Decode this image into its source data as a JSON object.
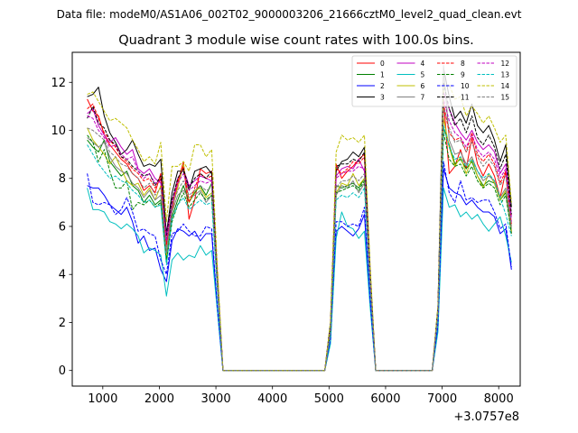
{
  "suptitle": "Data file: modeM0/AS1A06_002T02_9000003206_21666cztM0_level2_quad_clean.evt",
  "chart_data": {
    "type": "line",
    "title": "Quadrant 3 module wise count rates with 100.0s bins.",
    "xlabel": "",
    "ylabel": "",
    "x_offset_label": "+3.0757e8",
    "xlim": [
      460,
      8380
    ],
    "ylim": [
      -0.65,
      13.25
    ],
    "xticks": [
      1000,
      2000,
      3000,
      4000,
      5000,
      6000,
      7000,
      8000
    ],
    "xtick_labels": [
      "1000",
      "2000",
      "3000",
      "4000",
      "5000",
      "6000",
      "7000",
      "8000"
    ],
    "yticks": [
      0,
      2,
      4,
      6,
      8,
      10,
      12
    ],
    "ytick_labels": [
      "0",
      "2",
      "4",
      "6",
      "8",
      "10",
      "12"
    ],
    "legend_position": "upper-right",
    "legend_columns": 4,
    "x": [
      725,
      825,
      925,
      1025,
      1125,
      1225,
      1325,
      1425,
      1525,
      1625,
      1725,
      1825,
      1925,
      2025,
      2125,
      2225,
      2325,
      2425,
      2525,
      2625,
      2725,
      2825,
      2925,
      3025,
      3125,
      3225,
      4925,
      5025,
      5125,
      5225,
      5325,
      5425,
      5525,
      5625,
      5725,
      5825,
      6825,
      6925,
      7025,
      7125,
      7225,
      7325,
      7425,
      7525,
      7625,
      7725,
      7825,
      7925,
      8025,
      8125,
      8225
    ],
    "series": [
      {
        "name": "0",
        "color": "#ff0000",
        "style": "solid",
        "values": [
          11.3,
          10.8,
          10.6,
          9.8,
          9.4,
          9.1,
          8.8,
          8.6,
          8.2,
          8.0,
          7.5,
          7.7,
          7.4,
          8.2,
          5.3,
          6.6,
          7.8,
          8.7,
          6.3,
          7.1,
          8.4,
          8.2,
          8.3,
          4.0,
          0.0,
          0.0,
          0.0,
          1.8,
          8.6,
          8.0,
          8.3,
          8.5,
          8.8,
          9.0,
          4.0,
          0.0,
          0.0,
          2.5,
          11.3,
          8.2,
          8.5,
          9.2,
          8.4,
          9.7,
          8.6,
          8.1,
          8.6,
          8.1,
          7.2,
          8.3,
          5.7
        ]
      },
      {
        "name": "1",
        "color": "#008000",
        "style": "solid",
        "values": [
          9.6,
          9.3,
          9.1,
          9.6,
          8.7,
          8.4,
          8.1,
          8.3,
          7.7,
          7.5,
          7.0,
          7.3,
          6.9,
          7.1,
          4.6,
          6.4,
          7.1,
          7.7,
          7.0,
          7.4,
          7.7,
          7.3,
          7.8,
          3.7,
          0.0,
          0.0,
          0.0,
          1.6,
          7.7,
          7.6,
          7.7,
          7.8,
          7.6,
          8.0,
          3.8,
          0.0,
          0.0,
          2.4,
          10.1,
          9.4,
          8.6,
          8.8,
          8.4,
          8.7,
          8.1,
          7.7,
          7.9,
          7.8,
          7.1,
          7.4,
          5.8
        ]
      },
      {
        "name": "2",
        "color": "#0000ff",
        "style": "solid",
        "values": [
          7.7,
          7.6,
          7.6,
          7.3,
          6.9,
          6.7,
          6.5,
          6.8,
          6.2,
          5.3,
          5.6,
          5.0,
          5.1,
          4.2,
          3.7,
          5.4,
          5.9,
          5.8,
          5.6,
          5.8,
          5.4,
          5.7,
          5.7,
          2.6,
          0.0,
          0.0,
          0.0,
          1.2,
          5.8,
          6.0,
          5.8,
          5.6,
          5.9,
          6.5,
          2.9,
          0.0,
          0.0,
          1.8,
          8.4,
          7.6,
          7.4,
          7.3,
          6.9,
          7.1,
          6.8,
          6.6,
          6.6,
          6.4,
          5.7,
          5.9,
          4.2
        ]
      },
      {
        "name": "3",
        "color": "#000000",
        "style": "solid",
        "values": [
          11.4,
          11.5,
          11.8,
          10.6,
          9.9,
          9.5,
          9.0,
          9.2,
          9.6,
          9.0,
          8.5,
          8.6,
          8.5,
          8.8,
          5.7,
          7.4,
          8.3,
          8.3,
          7.5,
          8.3,
          8.4,
          8.5,
          8.2,
          4.1,
          0.0,
          0.0,
          0.0,
          2.0,
          8.3,
          8.7,
          8.8,
          9.1,
          8.9,
          9.3,
          4.3,
          0.0,
          0.0,
          2.6,
          12.6,
          11.4,
          10.5,
          10.8,
          10.3,
          11.1,
          10.2,
          9.9,
          10.2,
          9.6,
          8.7,
          9.4,
          6.8
        ]
      },
      {
        "name": "4",
        "color": "#c000c0",
        "style": "solid",
        "values": [
          10.7,
          10.9,
          10.2,
          9.8,
          9.5,
          9.7,
          9.3,
          9.0,
          9.2,
          8.4,
          8.2,
          8.4,
          8.0,
          7.8,
          5.6,
          7.0,
          8.0,
          8.4,
          7.7,
          7.9,
          8.1,
          8.0,
          7.9,
          3.9,
          0.0,
          0.0,
          0.0,
          1.7,
          8.1,
          8.4,
          8.5,
          8.4,
          8.8,
          8.3,
          4.0,
          0.0,
          0.0,
          2.5,
          11.6,
          10.9,
          10.3,
          9.9,
          9.6,
          10.0,
          9.5,
          9.2,
          9.4,
          9.1,
          8.2,
          8.6,
          6.4
        ]
      },
      {
        "name": "5",
        "color": "#00bfbf",
        "style": "solid",
        "values": [
          7.6,
          6.7,
          6.7,
          6.6,
          6.2,
          6.1,
          5.9,
          6.1,
          5.9,
          5.6,
          4.9,
          5.1,
          5.0,
          4.8,
          3.1,
          4.6,
          4.9,
          4.6,
          4.8,
          4.7,
          5.2,
          4.8,
          5.0,
          2.5,
          0.0,
          0.0,
          0.0,
          1.1,
          5.5,
          6.6,
          6.0,
          5.9,
          5.5,
          5.8,
          2.7,
          0.0,
          0.0,
          1.6,
          7.6,
          6.8,
          6.9,
          6.4,
          6.6,
          6.3,
          6.5,
          6.1,
          5.8,
          6.1,
          6.4,
          5.6,
          4.5
        ]
      },
      {
        "name": "6",
        "color": "#bfbf00",
        "style": "solid",
        "values": [
          10.1,
          9.6,
          9.3,
          9.0,
          8.6,
          8.9,
          8.4,
          7.9,
          7.7,
          7.8,
          7.3,
          7.6,
          7.1,
          7.7,
          4.8,
          6.8,
          7.6,
          8.6,
          7.0,
          7.5,
          7.6,
          7.2,
          7.4,
          3.6,
          0.0,
          0.0,
          0.0,
          1.6,
          7.4,
          7.8,
          7.7,
          8.2,
          7.7,
          8.0,
          3.8,
          0.0,
          0.0,
          2.3,
          10.5,
          9.3,
          8.5,
          8.9,
          8.2,
          8.8,
          8.1,
          7.6,
          8.2,
          7.8,
          7.1,
          7.5,
          5.8
        ]
      },
      {
        "name": "7",
        "color": "#808080",
        "style": "solid",
        "values": [
          9.7,
          9.5,
          9.3,
          9.5,
          8.9,
          8.5,
          8.3,
          8.2,
          7.8,
          7.6,
          7.2,
          7.5,
          7.1,
          7.3,
          4.9,
          6.6,
          7.3,
          7.5,
          7.2,
          7.3,
          7.5,
          7.0,
          7.3,
          3.5,
          0.0,
          0.0,
          0.0,
          1.5,
          7.3,
          7.7,
          7.6,
          7.9,
          7.4,
          7.8,
          3.7,
          0.0,
          0.0,
          2.4,
          12.7,
          9.6,
          9.0,
          9.1,
          8.6,
          8.9,
          8.3,
          7.9,
          8.1,
          7.9,
          7.2,
          7.6,
          5.9
        ]
      },
      {
        "name": "8",
        "color": "#ff0000",
        "style": "dashed",
        "values": [
          10.9,
          11.1,
          10.5,
          9.9,
          9.6,
          9.3,
          8.9,
          8.7,
          8.4,
          8.2,
          7.9,
          8.0,
          7.6,
          8.0,
          5.2,
          6.9,
          7.9,
          8.5,
          7.0,
          7.6,
          8.2,
          8.0,
          8.1,
          3.9,
          0.0,
          0.0,
          0.0,
          1.8,
          8.4,
          8.2,
          8.4,
          8.7,
          8.6,
          8.9,
          4.0,
          0.0,
          0.0,
          2.5,
          11.1,
          9.9,
          9.6,
          9.7,
          9.1,
          9.9,
          9.0,
          8.7,
          9.0,
          8.6,
          7.8,
          8.3,
          6.1
        ]
      },
      {
        "name": "9",
        "color": "#008000",
        "style": "dashed",
        "values": [
          9.8,
          9.5,
          8.7,
          9.2,
          8.3,
          7.6,
          7.6,
          7.9,
          6.7,
          7.0,
          6.9,
          7.1,
          6.8,
          7.0,
          4.5,
          6.2,
          6.9,
          7.4,
          6.8,
          7.1,
          7.4,
          7.1,
          7.3,
          3.6,
          0.0,
          0.0,
          0.0,
          1.6,
          7.4,
          7.5,
          7.6,
          7.7,
          7.5,
          7.9,
          3.7,
          0.0,
          0.0,
          2.3,
          9.9,
          8.8,
          8.5,
          8.6,
          8.1,
          8.5,
          7.9,
          7.6,
          7.8,
          7.6,
          6.9,
          7.3,
          5.7
        ]
      },
      {
        "name": "10",
        "color": "#0000ff",
        "style": "dashed",
        "values": [
          8.2,
          7.0,
          6.9,
          7.0,
          6.9,
          6.5,
          6.7,
          7.2,
          6.6,
          5.8,
          5.9,
          5.7,
          5.6,
          4.6,
          4.0,
          5.7,
          5.8,
          6.1,
          5.8,
          5.6,
          5.6,
          6.0,
          5.9,
          2.7,
          0.0,
          0.0,
          0.0,
          1.3,
          6.2,
          6.2,
          6.0,
          6.1,
          6.0,
          6.8,
          3.0,
          0.0,
          0.0,
          1.9,
          8.7,
          7.4,
          7.0,
          7.9,
          7.1,
          7.2,
          7.0,
          7.1,
          7.1,
          6.6,
          5.9,
          6.1,
          4.3
        ]
      },
      {
        "name": "11",
        "color": "#000000",
        "style": "dashed",
        "values": [
          10.5,
          11.0,
          10.3,
          10.1,
          9.6,
          9.4,
          8.9,
          8.8,
          8.5,
          8.3,
          8.1,
          8.2,
          7.7,
          8.1,
          5.5,
          7.1,
          8.0,
          8.4,
          7.6,
          8.0,
          8.2,
          8.0,
          8.3,
          4.0,
          0.0,
          0.0,
          0.0,
          1.8,
          8.5,
          8.6,
          8.6,
          8.8,
          8.7,
          9.1,
          4.1,
          0.0,
          0.0,
          2.6,
          12.0,
          10.9,
          10.2,
          10.5,
          9.9,
          10.6,
          9.7,
          9.4,
          9.8,
          9.3,
          8.4,
          9.0,
          6.5
        ]
      },
      {
        "name": "12",
        "color": "#c000c0",
        "style": "dashed",
        "values": [
          10.6,
          10.5,
          10.0,
          9.7,
          9.3,
          9.4,
          9.0,
          8.8,
          8.9,
          8.3,
          8.0,
          8.2,
          7.8,
          7.9,
          5.4,
          6.9,
          7.8,
          8.2,
          7.5,
          7.7,
          7.9,
          7.8,
          7.9,
          3.8,
          0.0,
          0.0,
          0.0,
          1.7,
          8.0,
          8.2,
          8.3,
          8.3,
          8.5,
          8.4,
          3.9,
          0.0,
          0.0,
          2.4,
          11.3,
          10.4,
          9.9,
          9.7,
          9.3,
          9.8,
          9.2,
          8.9,
          9.1,
          8.8,
          8.0,
          8.4,
          6.2
        ]
      },
      {
        "name": "13",
        "color": "#00bfbf",
        "style": "dashed",
        "values": [
          9.4,
          9.0,
          8.6,
          8.3,
          8.0,
          8.1,
          7.9,
          7.8,
          7.5,
          7.3,
          7.0,
          7.1,
          6.8,
          6.9,
          4.4,
          6.3,
          6.9,
          7.2,
          6.7,
          6.9,
          7.1,
          6.9,
          7.0,
          3.4,
          0.0,
          0.0,
          0.0,
          1.5,
          7.1,
          7.3,
          7.2,
          7.4,
          7.2,
          7.6,
          3.6,
          0.0,
          0.0,
          2.2,
          10.2,
          9.3,
          8.8,
          8.9,
          8.5,
          8.8,
          8.3,
          8.0,
          8.2,
          7.9,
          7.2,
          6.5,
          5.6
        ]
      },
      {
        "name": "14",
        "color": "#bfbf00",
        "style": "dashed",
        "values": [
          11.5,
          11.6,
          11.2,
          10.8,
          10.4,
          10.5,
          10.3,
          10.1,
          9.6,
          9.2,
          8.7,
          8.9,
          8.6,
          9.5,
          6.2,
          8.5,
          8.5,
          8.7,
          8.3,
          9.4,
          9.4,
          8.9,
          9.2,
          4.4,
          0.0,
          0.0,
          0.0,
          2.0,
          9.1,
          9.8,
          9.6,
          9.7,
          9.5,
          9.8,
          4.5,
          0.0,
          0.0,
          2.7,
          11.8,
          11.9,
          11.3,
          11.4,
          10.6,
          11.0,
          10.7,
          10.3,
          10.6,
          10.1,
          9.5,
          9.8,
          7.0
        ]
      },
      {
        "name": "15",
        "color": "#808080",
        "style": "dashed",
        "values": [
          10.1,
          10.0,
          9.8,
          9.6,
          9.1,
          8.9,
          8.6,
          8.5,
          8.2,
          8.0,
          7.6,
          7.8,
          7.3,
          7.6,
          5.0,
          6.8,
          7.5,
          7.9,
          7.3,
          7.5,
          7.7,
          7.5,
          7.6,
          3.7,
          0.0,
          0.0,
          0.0,
          1.6,
          7.6,
          7.9,
          7.9,
          8.1,
          7.9,
          8.2,
          3.8,
          0.0,
          0.0,
          2.4,
          11.0,
          10.1,
          9.5,
          9.6,
          9.1,
          9.5,
          8.9,
          8.5,
          8.8,
          8.5,
          7.7,
          8.1,
          6.0
        ]
      }
    ]
  }
}
